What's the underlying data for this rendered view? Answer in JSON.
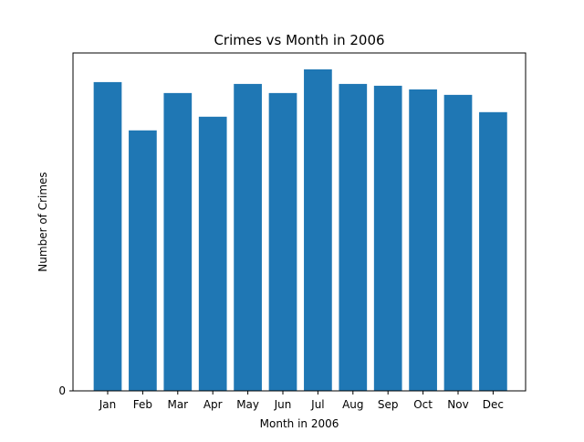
{
  "chart_data": {
    "type": "bar",
    "title": "Crimes vs Month in 2006",
    "xlabel": "Month in 2006",
    "ylabel": "Number of Crimes",
    "categories": [
      "Jan",
      "Feb",
      "Mar",
      "Apr",
      "May",
      "Jun",
      "Jul",
      "Aug",
      "Sep",
      "Oct",
      "Nov",
      "Dec"
    ],
    "values": [
      339,
      286,
      327,
      301,
      337,
      327,
      353,
      337,
      335,
      331,
      325,
      306
    ],
    "ylim": [
      0,
      371
    ],
    "yticks": [
      0
    ],
    "ytick_labels": [
      "0"
    ],
    "bar_color": "#1f77b4",
    "grid": false,
    "legend": "none"
  }
}
